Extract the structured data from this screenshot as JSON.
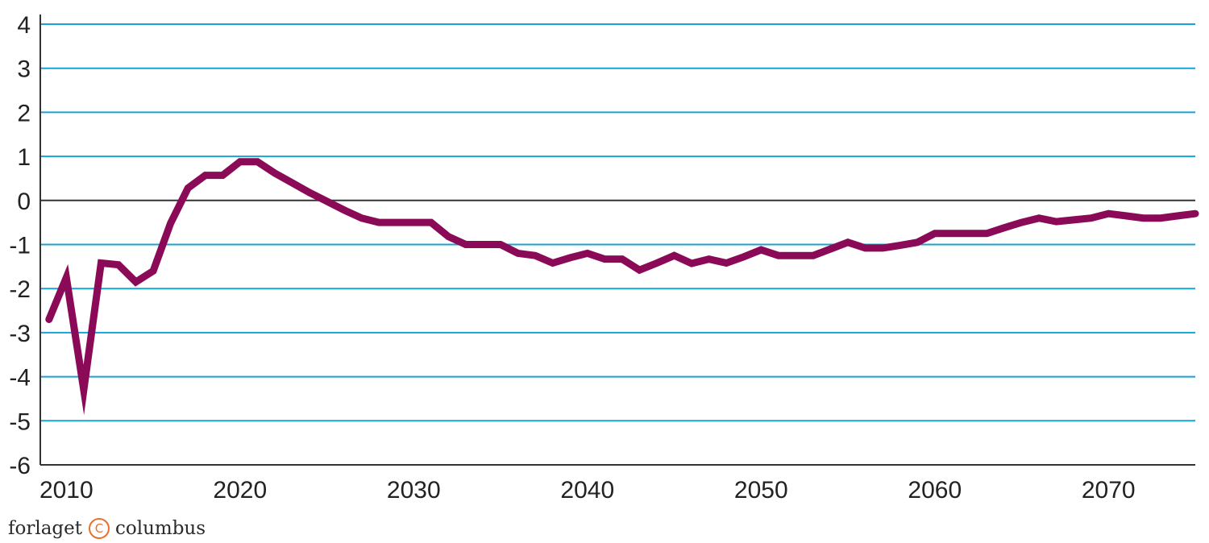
{
  "chart_data": {
    "type": "line",
    "title": "",
    "xlabel": "",
    "ylabel": "",
    "ylim": [
      -6,
      4
    ],
    "xlim": [
      2008.5,
      2075
    ],
    "yticks": [
      "4",
      "3",
      "2",
      "1",
      "0",
      "-1",
      "-2",
      "-3",
      "-4",
      "-5",
      "-6"
    ],
    "xticks": [
      "2010",
      "2020",
      "2030",
      "2040",
      "2050",
      "2060",
      "2070"
    ],
    "grid": true,
    "colors": {
      "line": "#8b0a57",
      "grid": "#1aa2d6",
      "zero": "#333333",
      "axis": "#333333"
    },
    "series": [
      {
        "x": [
          2009,
          2010,
          2011,
          2012,
          2013,
          2014,
          2015,
          2016,
          2017,
          2018,
          2019,
          2020,
          2021,
          2022,
          2023,
          2024,
          2025,
          2026,
          2027,
          2028,
          2029,
          2030,
          2031,
          2032,
          2033,
          2034,
          2035,
          2036,
          2037,
          2038,
          2039,
          2040,
          2041,
          2042,
          2043,
          2044,
          2045,
          2046,
          2047,
          2048,
          2049,
          2050,
          2051,
          2052,
          2053,
          2054,
          2055,
          2056,
          2057,
          2058,
          2059,
          2060,
          2061,
          2062,
          2063,
          2064,
          2065,
          2066,
          2067,
          2068,
          2069,
          2070,
          2071,
          2072,
          2073,
          2074,
          2075
        ],
        "values": [
          -2.7,
          -1.75,
          -4.3,
          -1.42,
          -1.46,
          -1.85,
          -1.6,
          -0.52,
          0.28,
          0.57,
          0.57,
          0.88,
          0.88,
          0.62,
          0.4,
          0.18,
          -0.02,
          -0.22,
          -0.4,
          -0.5,
          -0.5,
          -0.5,
          -0.5,
          -0.82,
          -1.0,
          -1.0,
          -1.0,
          -1.2,
          -1.25,
          -1.42,
          -1.3,
          -1.2,
          -1.33,
          -1.33,
          -1.58,
          -1.42,
          -1.25,
          -1.43,
          -1.33,
          -1.42,
          -1.28,
          -1.12,
          -1.25,
          -1.25,
          -1.25,
          -1.1,
          -0.95,
          -1.08,
          -1.08,
          -1.02,
          -0.95,
          -0.75,
          -0.75,
          -0.75,
          -0.75,
          -0.62,
          -0.5,
          -0.4,
          -0.48,
          -0.44,
          -0.4,
          -0.3,
          -0.35,
          -0.4,
          -0.4,
          -0.35,
          -0.3
        ]
      }
    ]
  },
  "brand": {
    "left": "forlaget",
    "mark": "C",
    "right": "columbus"
  }
}
